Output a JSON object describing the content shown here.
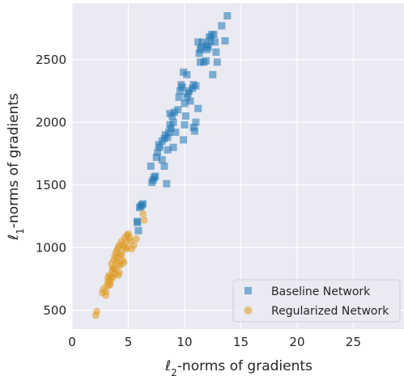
{
  "chart_data": {
    "type": "scatter",
    "title": "",
    "xlabel": "ℓ2-norms of gradients",
    "ylabel": "ℓ1-norms of gradients",
    "xlabel_parts": {
      "pre": "ℓ",
      "sub": "2",
      "post": "-norms of gradients"
    },
    "ylabel_parts": {
      "pre": "ℓ",
      "sub": "1",
      "post": "-norms of gradients"
    },
    "xlim": [
      0,
      29.5
    ],
    "ylim": [
      350,
      2950
    ],
    "xticks": [
      0,
      5,
      10,
      15,
      20,
      25
    ],
    "yticks": [
      500,
      1000,
      1500,
      2000,
      2500
    ],
    "grid": true,
    "legend_position": "lower-right",
    "series": [
      {
        "name": "Baseline Network",
        "color": "#1f77b4",
        "marker": "square",
        "points": [
          [
            5.8,
            1200
          ],
          [
            5.8,
            1210
          ],
          [
            6.0,
            1320
          ],
          [
            6.1,
            1330
          ],
          [
            6.3,
            1350
          ],
          [
            6.2,
            1340
          ],
          [
            5.9,
            1135
          ],
          [
            7.1,
            1520
          ],
          [
            7.3,
            1560
          ],
          [
            7.2,
            1540
          ],
          [
            7.4,
            1570
          ],
          [
            7.0,
            1650
          ],
          [
            7.5,
            1720
          ],
          [
            7.6,
            1760
          ],
          [
            7.8,
            1800
          ],
          [
            7.7,
            1820
          ],
          [
            8.0,
            1700
          ],
          [
            8.2,
            1650
          ],
          [
            8.4,
            1510
          ],
          [
            8.0,
            1850
          ],
          [
            8.2,
            1870
          ],
          [
            8.5,
            1880
          ],
          [
            8.3,
            1900
          ],
          [
            8.6,
            1920
          ],
          [
            8.8,
            1950
          ],
          [
            8.7,
            1980
          ],
          [
            9.0,
            2000
          ],
          [
            8.9,
            2050
          ],
          [
            9.1,
            2080
          ],
          [
            8.7,
            2070
          ],
          [
            9.2,
            1920
          ],
          [
            9.0,
            1800
          ],
          [
            8.5,
            1780
          ],
          [
            9.4,
            2100
          ],
          [
            9.5,
            2200
          ],
          [
            9.6,
            2250
          ],
          [
            9.7,
            2300
          ],
          [
            9.8,
            2280
          ],
          [
            10.0,
            2150
          ],
          [
            10.2,
            2200
          ],
          [
            10.3,
            2230
          ],
          [
            10.4,
            2250
          ],
          [
            10.5,
            2170
          ],
          [
            10.1,
            2050
          ],
          [
            10.0,
            1980
          ],
          [
            9.9,
            1860
          ],
          [
            10.9,
            1930
          ],
          [
            10.8,
            1960
          ],
          [
            11.0,
            2000
          ],
          [
            10.7,
            2270
          ],
          [
            10.8,
            2300
          ],
          [
            11.0,
            2290
          ],
          [
            11.2,
            2110
          ],
          [
            10.2,
            2380
          ],
          [
            9.9,
            2400
          ],
          [
            11.3,
            2550
          ],
          [
            11.4,
            2580
          ],
          [
            11.5,
            2600
          ],
          [
            11.6,
            2640
          ],
          [
            11.7,
            2480
          ],
          [
            11.9,
            2490
          ],
          [
            12.0,
            2620
          ],
          [
            12.1,
            2600
          ],
          [
            12.2,
            2680
          ],
          [
            12.3,
            2650
          ],
          [
            12.4,
            2700
          ],
          [
            12.6,
            2700
          ],
          [
            12.7,
            2640
          ],
          [
            12.8,
            2560
          ],
          [
            12.9,
            2480
          ],
          [
            12.5,
            2380
          ],
          [
            11.2,
            2640
          ],
          [
            11.4,
            2480
          ],
          [
            13.3,
            2770
          ],
          [
            13.6,
            2650
          ],
          [
            13.8,
            2850
          ],
          [
            12.0,
            2580
          ]
        ]
      },
      {
        "name": "Regularized Network",
        "color": "#de9a22",
        "marker": "circle",
        "points": [
          [
            2.1,
            460
          ],
          [
            2.2,
            490
          ],
          [
            2.7,
            640
          ],
          [
            2.8,
            670
          ],
          [
            3.0,
            650
          ],
          [
            3.1,
            700
          ],
          [
            3.2,
            760
          ],
          [
            3.3,
            780
          ],
          [
            3.4,
            740
          ],
          [
            3.5,
            770
          ],
          [
            3.6,
            810
          ],
          [
            3.5,
            870
          ],
          [
            3.7,
            900
          ],
          [
            3.8,
            930
          ],
          [
            3.6,
            830
          ],
          [
            3.9,
            960
          ],
          [
            4.0,
            980
          ],
          [
            4.1,
            1000
          ],
          [
            4.2,
            1020
          ],
          [
            4.0,
            890
          ],
          [
            4.3,
            940
          ],
          [
            4.2,
            870
          ],
          [
            4.4,
            950
          ],
          [
            4.5,
            1020
          ],
          [
            4.6,
            1000
          ],
          [
            4.7,
            1080
          ],
          [
            4.8,
            1050
          ],
          [
            4.9,
            1100
          ],
          [
            5.0,
            1110
          ],
          [
            5.1,
            1080
          ],
          [
            4.4,
            1050
          ],
          [
            4.1,
            780
          ],
          [
            3.8,
            790
          ],
          [
            3.6,
            760
          ],
          [
            3.4,
            710
          ],
          [
            4.6,
            880
          ],
          [
            4.8,
            990
          ],
          [
            5.2,
            1050
          ],
          [
            4.9,
            1000
          ],
          [
            3.9,
            830
          ],
          [
            4.3,
            860
          ],
          [
            5.5,
            1020
          ],
          [
            5.7,
            1070
          ],
          [
            6.4,
            1220
          ],
          [
            6.3,
            1270
          ],
          [
            3.2,
            730
          ],
          [
            4.0,
            920
          ],
          [
            3.7,
            840
          ],
          [
            4.5,
            900
          ],
          [
            5.3,
            990
          ],
          [
            4.2,
            800
          ],
          [
            3.3,
            700
          ],
          [
            3.0,
            620
          ]
        ]
      }
    ]
  }
}
